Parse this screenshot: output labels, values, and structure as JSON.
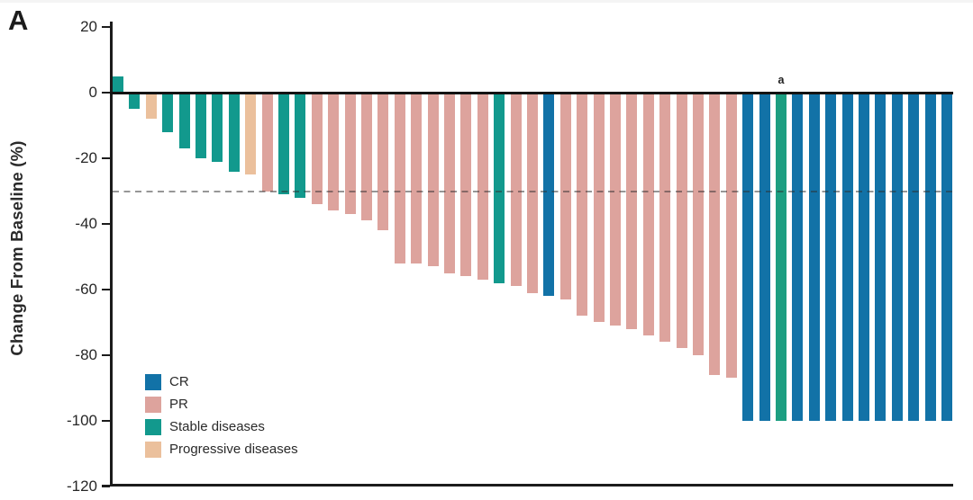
{
  "panel_label": "A",
  "chart_data": {
    "type": "bar",
    "subtype": "waterfall-best-response",
    "title": "",
    "xlabel": "",
    "ylabel": "Change From Baseline (%)",
    "ylim": [
      -120,
      20
    ],
    "y_ticks": [
      20,
      0,
      -20,
      -40,
      -60,
      -80,
      -100,
      -120
    ],
    "reference_line_y": -30,
    "grid": false,
    "x_tick_labels": [],
    "legend_position": "inside-bottom-left",
    "annotation": {
      "text": "a",
      "applies_to": "flagged bar"
    },
    "response_colors": {
      "CR": "#1272A7",
      "PR": "#DDA39D",
      "SD": "#12998D",
      "PD": "#EBC09C",
      "SD_FLAGGED": "#1C9E81"
    },
    "bars": [
      {
        "value": 5,
        "response": "SD"
      },
      {
        "value": -5,
        "response": "SD"
      },
      {
        "value": -8,
        "response": "PD"
      },
      {
        "value": -12,
        "response": "SD"
      },
      {
        "value": -17,
        "response": "SD"
      },
      {
        "value": -20,
        "response": "SD"
      },
      {
        "value": -21,
        "response": "SD"
      },
      {
        "value": -24,
        "response": "SD"
      },
      {
        "value": -25,
        "response": "PD"
      },
      {
        "value": -30,
        "response": "PR"
      },
      {
        "value": -31,
        "response": "SD"
      },
      {
        "value": -32,
        "response": "SD"
      },
      {
        "value": -34,
        "response": "PR"
      },
      {
        "value": -36,
        "response": "PR"
      },
      {
        "value": -37,
        "response": "PR"
      },
      {
        "value": -39,
        "response": "PR"
      },
      {
        "value": -42,
        "response": "PR"
      },
      {
        "value": -52,
        "response": "PR"
      },
      {
        "value": -52,
        "response": "PR"
      },
      {
        "value": -53,
        "response": "PR"
      },
      {
        "value": -55,
        "response": "PR"
      },
      {
        "value": -56,
        "response": "PR"
      },
      {
        "value": -57,
        "response": "PR"
      },
      {
        "value": -58,
        "response": "SD"
      },
      {
        "value": -59,
        "response": "PR"
      },
      {
        "value": -61,
        "response": "PR"
      },
      {
        "value": -62,
        "response": "CR"
      },
      {
        "value": -63,
        "response": "PR"
      },
      {
        "value": -68,
        "response": "PR"
      },
      {
        "value": -70,
        "response": "PR"
      },
      {
        "value": -71,
        "response": "PR"
      },
      {
        "value": -72,
        "response": "PR"
      },
      {
        "value": -74,
        "response": "PR"
      },
      {
        "value": -76,
        "response": "PR"
      },
      {
        "value": -78,
        "response": "PR"
      },
      {
        "value": -80,
        "response": "PR"
      },
      {
        "value": -86,
        "response": "PR"
      },
      {
        "value": -87,
        "response": "PR"
      },
      {
        "value": -100,
        "response": "CR"
      },
      {
        "value": -100,
        "response": "CR"
      },
      {
        "value": -100,
        "response": "SD",
        "flag": "a"
      },
      {
        "value": -100,
        "response": "CR"
      },
      {
        "value": -100,
        "response": "CR"
      },
      {
        "value": -100,
        "response": "CR"
      },
      {
        "value": -100,
        "response": "CR"
      },
      {
        "value": -100,
        "response": "CR"
      },
      {
        "value": -100,
        "response": "CR"
      },
      {
        "value": -100,
        "response": "CR"
      },
      {
        "value": -100,
        "response": "CR"
      },
      {
        "value": -100,
        "response": "CR"
      },
      {
        "value": -100,
        "response": "CR"
      }
    ]
  },
  "legend": {
    "items": [
      {
        "label": "CR",
        "color": "#1272A7"
      },
      {
        "label": "PR",
        "color": "#DDA39D"
      },
      {
        "label": "Stable diseases",
        "color": "#12998D"
      },
      {
        "label": "Progressive diseases",
        "color": "#EBC09C"
      }
    ]
  }
}
